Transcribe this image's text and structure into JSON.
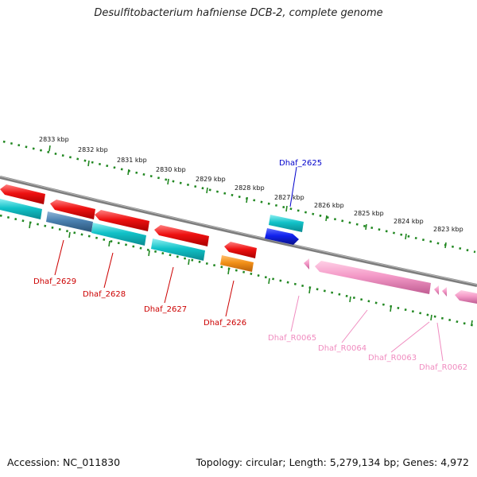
{
  "title": "Desulfitobacterium hafniense DCB-2, complete genome",
  "footer": {
    "accession": "Accession: NC_011830",
    "summary": "Topology: circular; Length: 5,279,134 bp; Genes: 4,972"
  },
  "ruler": {
    "ticks": [
      "2833 kbp",
      "2832 kbp",
      "2831 kbp",
      "2830 kbp",
      "2829 kbp",
      "2828 kbp",
      "2827 kbp",
      "2826 kbp",
      "2825 kbp",
      "2824 kbp",
      "2823 kbp"
    ]
  },
  "gene_labels": {
    "dhaf_2625": "Dhaf_2625",
    "dhaf_2626": "Dhaf_2626",
    "dhaf_2627": "Dhaf_2627",
    "dhaf_2628": "Dhaf_2628",
    "dhaf_2629": "Dhaf_2629",
    "dhaf_r0062": "Dhaf_R0062",
    "dhaf_r0063": "Dhaf_R0063",
    "dhaf_r0064": "Dhaf_R0064",
    "dhaf_r0065": "Dhaf_R0065"
  },
  "colors": {
    "cds": "#ee1111",
    "cds_alt": "#1122ee",
    "cds_bar": "#11c2c8",
    "cds_bar_alt": "#4a80b0",
    "orange_bar": "#f29018",
    "rna": "#f49ac8",
    "label_red": "#cc0000",
    "label_blue": "#0000cc",
    "label_pink": "#f08cc0",
    "backbone": "#808080",
    "ruler": "#228822"
  }
}
